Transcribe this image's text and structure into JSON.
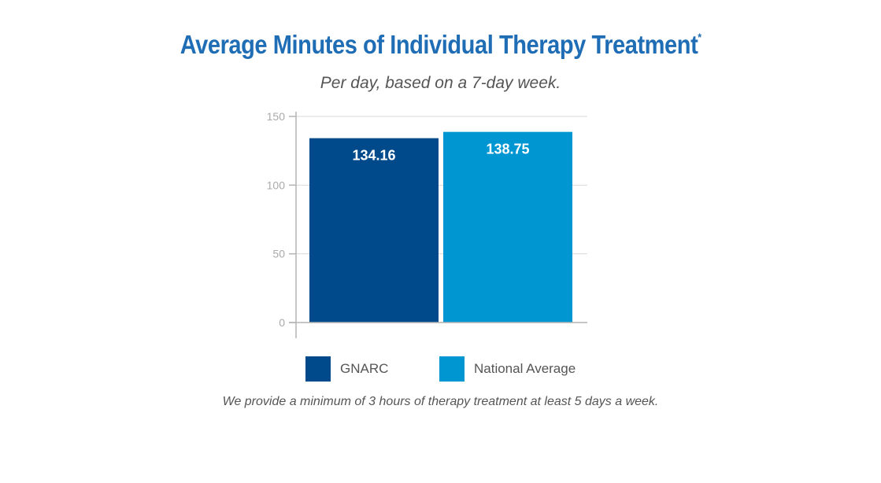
{
  "colors": {
    "title": "#1f6db5",
    "gnarc": "#004a8c",
    "national": "#0096d2",
    "axis": "#b3b3b3",
    "tick_text": "#aaaaaa"
  },
  "chart_data": {
    "type": "bar",
    "title": "Average Minutes of Individual Therapy Treatment",
    "title_mark": "*",
    "subtitle": "Per day, based on a 7-day week.",
    "categories": [
      "GNARC",
      "National Average"
    ],
    "values": [
      134.16,
      138.75
    ],
    "value_labels": [
      "134.16",
      "138.75"
    ],
    "ylim": [
      0,
      150
    ],
    "yticks": [
      0,
      50,
      100,
      150
    ],
    "grid": true,
    "legend": [
      "GNARC",
      "National Average"
    ],
    "legend_position": "bottom",
    "footnote": "We provide a minimum of 3 hours of therapy treatment at least 5 days a week."
  }
}
